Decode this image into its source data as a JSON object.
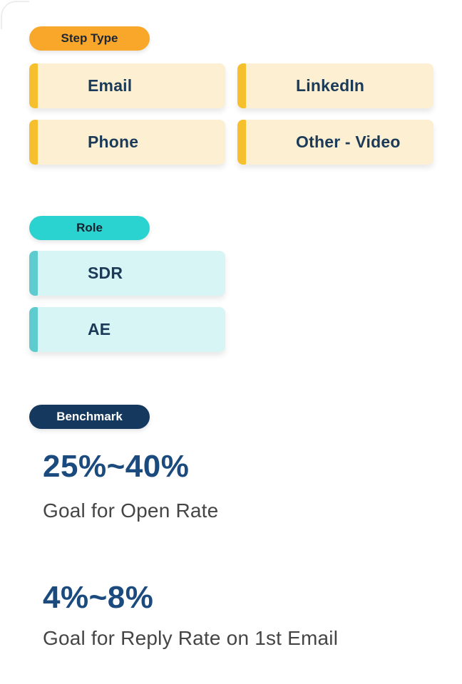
{
  "colors": {
    "badge_orange": "#F9A72B",
    "card_cream": "#FCEFD2",
    "accent_gold": "#F5BF2D",
    "badge_teal": "#2AD3CF",
    "card_light_cyan": "#D8F5F6",
    "accent_teal": "#5ECBCE",
    "badge_navy": "#15395E",
    "stat_blue": "#1B4B7E",
    "card_text_navy": "#1A3A57",
    "caption_gray": "#454545"
  },
  "step_type": {
    "label": "Step Type",
    "options": [
      {
        "label": "Email"
      },
      {
        "label": "LinkedIn"
      },
      {
        "label": "Phone"
      },
      {
        "label": "Other - Video"
      }
    ]
  },
  "role": {
    "label": "Role",
    "options": [
      {
        "label": "SDR"
      },
      {
        "label": "AE"
      }
    ]
  },
  "benchmark": {
    "label": "Benchmark",
    "stats": [
      {
        "value": "25%~40%",
        "caption": "Goal for Open Rate"
      },
      {
        "value": "4%~8%",
        "caption": "Goal for Reply Rate on 1st Email"
      }
    ]
  }
}
